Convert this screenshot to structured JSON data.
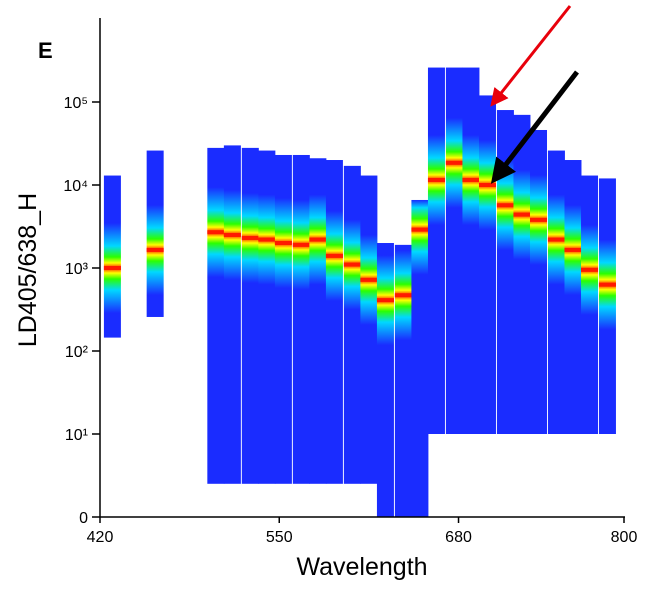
{
  "chart_data": {
    "type": "density",
    "title": "E",
    "x_label": "Wavelength",
    "y_label": "LD405/638_H",
    "xlim": [
      420,
      800
    ],
    "xticks": [
      420,
      550,
      680,
      800
    ],
    "ylim": [
      0,
      1000000
    ],
    "y_scale": "biexponential",
    "yticks": [
      {
        "value": 0,
        "label": "0"
      },
      {
        "value": 10,
        "label": "10¹"
      },
      {
        "value": 100,
        "label": "10²"
      },
      {
        "value": 1000,
        "label": "10³"
      },
      {
        "value": 10000,
        "label": "10⁴"
      },
      {
        "value": 100000,
        "label": "10⁵"
      }
    ],
    "colors": [
      "#1a2cff",
      "#00d8ff",
      "#2cff00",
      "#ffff00",
      "#ff1a00"
    ],
    "x": [
      429,
      460,
      504,
      516,
      529,
      541,
      553,
      566,
      578,
      590,
      603,
      615,
      627,
      640,
      652,
      664,
      677,
      689,
      701,
      714,
      726,
      738,
      751,
      763,
      775,
      788
    ],
    "high": [
      13000,
      26000,
      28000,
      30000,
      28000,
      26000,
      23000,
      23000,
      21000,
      20000,
      17000,
      13000,
      2000,
      1900,
      6600,
      260000,
      260000,
      260000,
      120000,
      80000,
      70000,
      46000,
      26000,
      20000,
      13000,
      12000
    ],
    "low": [
      145,
      257,
      4,
      4,
      4,
      4,
      4,
      4,
      4,
      4,
      4,
      4,
      0,
      0,
      0,
      10,
      10,
      10,
      10,
      10,
      10,
      10,
      10,
      10,
      10,
      10
    ],
    "peak": [
      1000,
      1650,
      2700,
      2500,
      2300,
      2200,
      2000,
      1900,
      2200,
      1400,
      1100,
      720,
      410,
      470,
      2900,
      11500,
      18500,
      11500,
      10000,
      5700,
      4400,
      3800,
      2200,
      1650,
      950,
      630
    ]
  }
}
